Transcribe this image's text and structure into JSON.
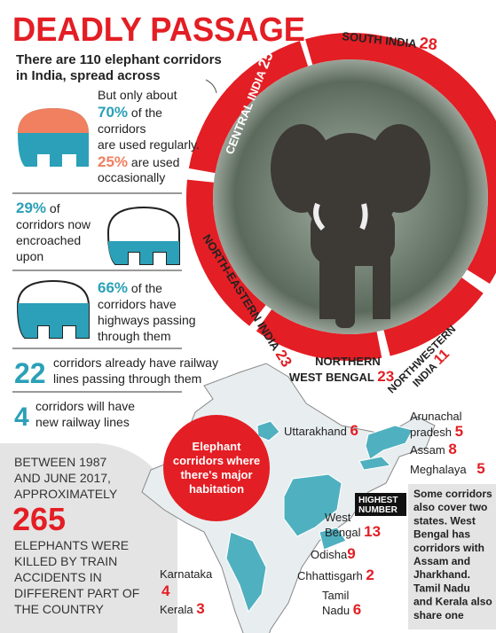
{
  "title": "DEADLY PASSAGE",
  "intro": [
    "There are 110 elephant corridors",
    "in India, spread across"
  ],
  "regions": [
    {
      "name": [
        "SOUTH INDIA"
      ],
      "count": 28
    },
    {
      "name": [
        "CENTRAL INDIA"
      ],
      "count": 25
    },
    {
      "name": [
        "NORTH-EASTERN INDIA"
      ],
      "count": 23
    },
    {
      "name": [
        "NORTHERN",
        "WEST BENGAL"
      ],
      "count": 23
    },
    {
      "name": [
        "NORTHWESTERN",
        "INDIA"
      ],
      "count": 11
    }
  ],
  "stats": [
    {
      "highlight": "70%",
      "highlight2": "25%",
      "lines": [
        "But only about",
        "of the",
        "corridors",
        "are used regularly.",
        "are used",
        "occasionally"
      ]
    },
    {
      "highlight": "29%",
      "lines": [
        "of",
        "corridors now",
        "encroached",
        "upon"
      ]
    },
    {
      "highlight": "66%",
      "lines": [
        "of the",
        "corridors have",
        "highways passing",
        "through them"
      ]
    },
    {
      "highlight": "22",
      "lines": [
        "corridors already have railway",
        "lines passing through them"
      ]
    },
    {
      "highlight": "4",
      "lines": [
        "corridors will have",
        "new railway lines"
      ]
    }
  ],
  "killed": {
    "before": [
      "BETWEEN 1987",
      "AND JUNE 2017,",
      "APPROXIMATELY"
    ],
    "number": "265",
    "after": [
      "ELEPHANTS WERE",
      "KILLED BY TRAIN",
      "ACCIDENTS IN",
      "DIFFERENT PART OF",
      "THE COUNTRY"
    ]
  },
  "callout": [
    "Elephant",
    "corridors where",
    "there's major",
    "habitation"
  ],
  "states": [
    {
      "name": [
        "Uttarakhand"
      ],
      "count": 6
    },
    {
      "name": [
        "Arunachal",
        "pradesh"
      ],
      "count": 5
    },
    {
      "name": [
        "Assam"
      ],
      "count": 8
    },
    {
      "name": [
        "Meghalaya"
      ],
      "count": 5
    },
    {
      "name": [
        "West",
        "Bengal"
      ],
      "count": 13
    },
    {
      "name": [
        "Odisha"
      ],
      "count": 9
    },
    {
      "name": [
        "Chhattisgarh"
      ],
      "count": 2
    },
    {
      "name": [
        "Karnataka"
      ],
      "count": 4
    },
    {
      "name": [
        "Kerala"
      ],
      "count": 3
    },
    {
      "name": [
        "Tamil",
        "Nadu"
      ],
      "count": 6
    }
  ],
  "highest": [
    "HIGHEST",
    "NUMBER"
  ],
  "note": [
    "Some corridors",
    "also cover two",
    "states. West",
    "Bengal has",
    "corridors with",
    "Assam and",
    "Jharkhand.",
    "Tamil Nadu",
    "and Kerala also",
    "share one"
  ]
}
